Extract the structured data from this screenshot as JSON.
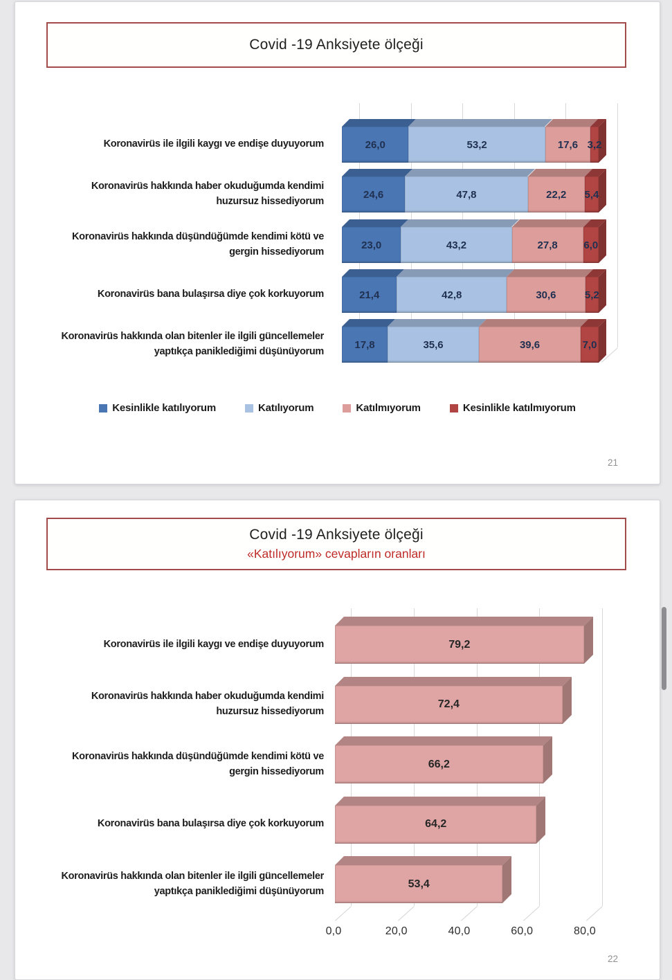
{
  "slides": {
    "slide1": {
      "page_number": "21"
    },
    "slide2": {
      "page_number": "22"
    }
  },
  "chart_data": [
    {
      "type": "bar",
      "variant": "stacked-horizontal-3d",
      "title": "Covid -19 Anksiyete ölçeği",
      "categories": [
        "Koronavirüs ile ilgili kaygı ve endişe duyuyorum",
        "Koronavirüs hakkında haber okuduğumda kendimi huzursuz hissediyorum",
        "Koronavirüs hakkında düşündüğümde kendimi kötü ve gergin hissediyorum",
        "Koronavirüs bana bulaşırsa diye çok korkuyorum",
        "Koronavirüs hakkında olan bitenler ile ilgili güncellemeler yaptıkça paniklediğimi düşünüyorum"
      ],
      "series": [
        {
          "name": "Kesinlikle katılıyorum",
          "color": "#4A77B4",
          "values": [
            26.0,
            24.6,
            23.0,
            21.4,
            17.8
          ]
        },
        {
          "name": "Katılıyorum",
          "color": "#A9C2E3",
          "values": [
            53.2,
            47.8,
            43.2,
            42.8,
            35.6
          ]
        },
        {
          "name": "Katılmıyorum",
          "color": "#DD9D9B",
          "values": [
            17.6,
            22.2,
            27.8,
            30.6,
            39.6
          ]
        },
        {
          "name": "Kesinlikle katılmıyorum",
          "color": "#B04543",
          "values": [
            3.2,
            5.4,
            6.0,
            5.2,
            7.0
          ]
        }
      ],
      "xlim": [
        0,
        100
      ],
      "gridline_step": 20,
      "grid": true,
      "legend_position": "bottom",
      "decimal_separator": ","
    },
    {
      "type": "bar",
      "variant": "horizontal-3d",
      "title": "Covid -19 Anksiyete ölçeği",
      "subtitle": "«Katılıyorum» cevapların oranları",
      "categories": [
        "Koronavirüs ile ilgili kaygı ve endişe duyuyorum",
        "Koronavirüs hakkında haber okuduğumda kendimi huzursuz hissediyorum",
        "Koronavirüs hakkında düşündüğümde kendimi kötü ve gergin hissediyorum",
        "Koronavirüs bana bulaşırsa diye çok korkuyorum",
        "Koronavirüs hakkında olan bitenler ile ilgili güncellemeler yaptıkça paniklediğimi düşünüyorum"
      ],
      "values": [
        79.2,
        72.4,
        66.2,
        64.2,
        53.4
      ],
      "bar_color": "#DFA5A4",
      "x_ticks": [
        "0,0",
        "20,0",
        "40,0",
        "60,0",
        "80,0"
      ],
      "xlim": [
        0,
        88
      ],
      "grid": true,
      "legend_position": "none",
      "decimal_separator": ","
    }
  ]
}
